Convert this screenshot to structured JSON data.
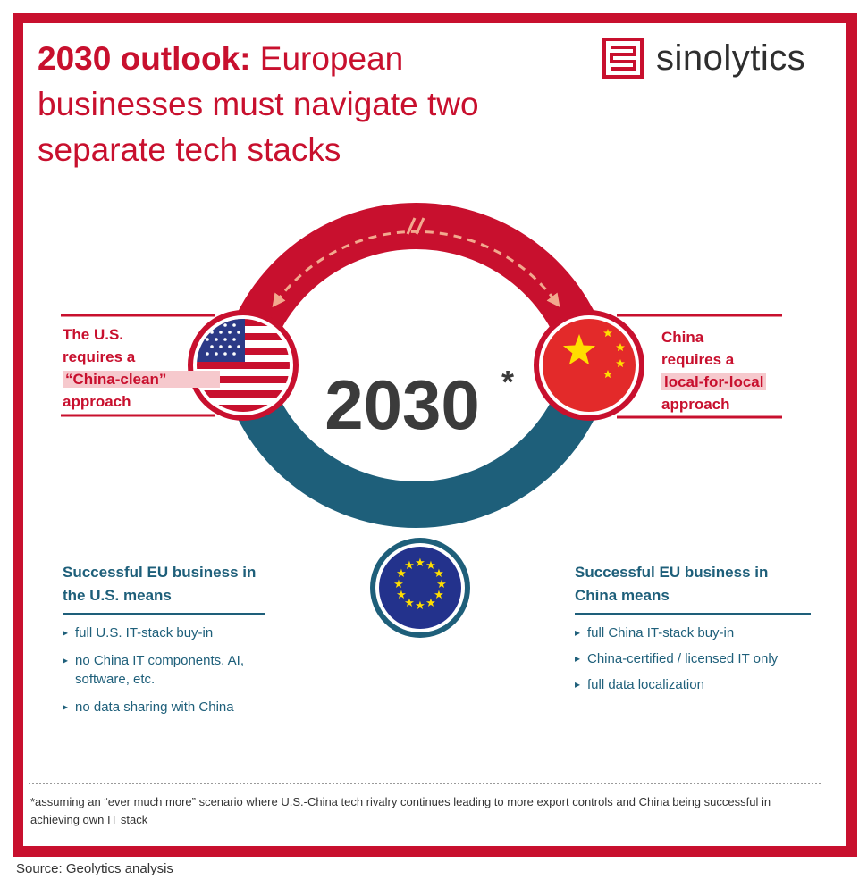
{
  "title": {
    "bold": "2030 outlook:",
    "rest": " European businesses must navigate two separate tech stacks"
  },
  "logo": {
    "text": "sinolytics",
    "icon": "sinolytics-mark-icon"
  },
  "center": {
    "year": "2030",
    "asterisk": "*"
  },
  "us_label": {
    "line1": "The U.S.",
    "line2": "requires a",
    "highlight": "“China-clean”",
    "line4": "approach"
  },
  "china_label": {
    "line1": "China",
    "line2": "requires a",
    "highlight": "local-for-local",
    "line4": "approach"
  },
  "us_block": {
    "heading": "Successful EU business in the U.S. means",
    "items": [
      "full U.S. IT-stack buy-in",
      "no China IT components, AI, software, etc.",
      "no data sharing with China"
    ]
  },
  "china_block": {
    "heading": "Successful EU business in China means",
    "items": [
      "full China IT-stack buy-in",
      "China-certified / licensed IT only",
      "full data localization"
    ]
  },
  "flags": {
    "us": "us-flag-icon",
    "china": "china-flag-icon",
    "eu": "eu-flag-icon"
  },
  "colors": {
    "red": "#c8102e",
    "teal": "#1e5f7a",
    "dark_text": "#3b3b3b",
    "highlight": "#f6c9cd"
  },
  "footnote": "*assuming an “ever much more” scenario where U.S.-China tech rivalry continues leading to more export controls and China being successful in achieving own IT stack",
  "source": "Source: Geolytics analysis"
}
